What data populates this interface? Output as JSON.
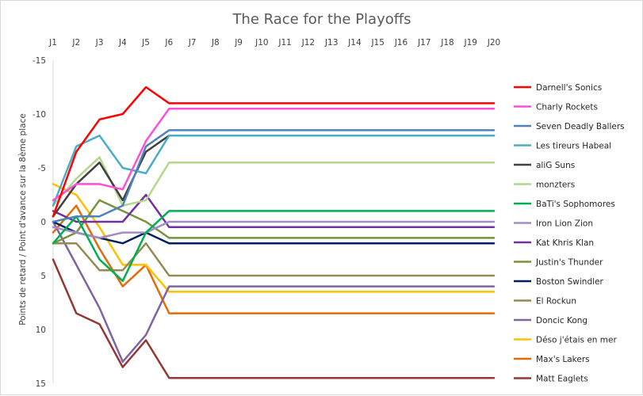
{
  "chart_data": {
    "type": "line",
    "title": "The Race for the Playoffs",
    "xlabel": "",
    "ylabel": "Points de retard / Point d'avance sur la 8ème place",
    "categories": [
      "J1",
      "J2",
      "J3",
      "J4",
      "J5",
      "J6",
      "J7",
      "J8",
      "J9",
      "J10",
      "J11",
      "J12",
      "J13",
      "J14",
      "J15",
      "J16",
      "J17",
      "J18",
      "J19",
      "J20"
    ],
    "y_ticks": [
      "-15",
      "-10",
      "-5",
      "0",
      "5",
      "10",
      "15"
    ],
    "ylim": [
      -15,
      15
    ],
    "y_inverted": true,
    "grid": false,
    "legend_position": "right",
    "series": [
      {
        "name": "Darnell's Sonics",
        "color": "#ff0000",
        "values": [
          -0.5,
          -6.5,
          -9.5,
          -10,
          -12.5,
          -11,
          -11,
          -11,
          -11,
          -11,
          -11,
          -11,
          -11,
          -11,
          -11,
          -11,
          -11,
          -11,
          -11,
          -11
        ]
      },
      {
        "name": "Charly Rockets",
        "color": "#ff4fd8",
        "values": [
          -2,
          -3.5,
          -3.5,
          -3,
          -7.5,
          -10.5,
          -10.5,
          -10.5,
          -10.5,
          -10.5,
          -10.5,
          -10.5,
          -10.5,
          -10.5,
          -10.5,
          -10.5,
          -10.5,
          -10.5,
          -10.5,
          -10.5
        ]
      },
      {
        "name": "Seven Deadly Ballers",
        "color": "#4f81bd",
        "values": [
          0,
          -0.5,
          -0.5,
          -1.5,
          -7,
          -8.5,
          -8.5,
          -8.5,
          -8.5,
          -8.5,
          -8.5,
          -8.5,
          -8.5,
          -8.5,
          -8.5,
          -8.5,
          -8.5,
          -8.5,
          -8.5,
          -8.5
        ]
      },
      {
        "name": "Les tireurs Habeal",
        "color": "#4bacc6",
        "values": [
          -1.5,
          -7,
          -8,
          -5,
          -4.5,
          -8,
          -8,
          -8,
          -8,
          -8,
          -8,
          -8,
          -8,
          -8,
          -8,
          -8,
          -8,
          -8,
          -8,
          -8
        ]
      },
      {
        "name": "aliG Suns",
        "color": "#404040",
        "values": [
          -0.5,
          -3.5,
          -5.5,
          -2,
          -6.5,
          -8,
          -8,
          -8,
          -8,
          -8,
          -8,
          -8,
          -8,
          -8,
          -8,
          -8,
          -8,
          -8,
          -8,
          -8
        ]
      },
      {
        "name": "monzters",
        "color": "#b4d88b",
        "values": [
          -1.5,
          -4,
          -6,
          -1.5,
          -2,
          -5.5,
          -5.5,
          -5.5,
          -5.5,
          -5.5,
          -5.5,
          -5.5,
          -5.5,
          -5.5,
          -5.5,
          -5.5,
          -5.5,
          -5.5,
          -5.5,
          -5.5
        ]
      },
      {
        "name": "BaTi's Sophomores",
        "color": "#00b050",
        "values": [
          2,
          -0.5,
          3.5,
          5.5,
          1,
          -1,
          -1,
          -1,
          -1,
          -1,
          -1,
          -1,
          -1,
          -1,
          -1,
          -1,
          -1,
          -1,
          -1,
          -1
        ]
      },
      {
        "name": "Iron Lion Zion",
        "color": "#a28cc8",
        "values": [
          0.5,
          1,
          1.5,
          1,
          1,
          0,
          0,
          0,
          0,
          0,
          0,
          0,
          0,
          0,
          0,
          0,
          0,
          0,
          0,
          0
        ]
      },
      {
        "name": "Kat Khris Klan",
        "color": "#7030a0",
        "values": [
          -1,
          0,
          0,
          0,
          -2.5,
          0.5,
          0.5,
          0.5,
          0.5,
          0.5,
          0.5,
          0.5,
          0.5,
          0.5,
          0.5,
          0.5,
          0.5,
          0.5,
          0.5,
          0.5
        ]
      },
      {
        "name": "Justin's Thunder",
        "color": "#77933c",
        "values": [
          2,
          1,
          -2,
          -1,
          0,
          1.5,
          1.5,
          1.5,
          1.5,
          1.5,
          1.5,
          1.5,
          1.5,
          1.5,
          1.5,
          1.5,
          1.5,
          1.5,
          1.5,
          1.5
        ]
      },
      {
        "name": "Boston Swindler",
        "color": "#002060",
        "values": [
          0,
          1,
          1.5,
          2,
          1,
          2,
          2,
          2,
          2,
          2,
          2,
          2,
          2,
          2,
          2,
          2,
          2,
          2,
          2,
          2
        ]
      },
      {
        "name": "El Rockun",
        "color": "#948a54",
        "values": [
          2,
          2,
          4.5,
          4.5,
          2,
          5,
          5,
          5,
          5,
          5,
          5,
          5,
          5,
          5,
          5,
          5,
          5,
          5,
          5,
          5
        ]
      },
      {
        "name": "Doncic Kong",
        "color": "#8064a2",
        "values": [
          0,
          4,
          8,
          13,
          10.5,
          6,
          6,
          6,
          6,
          6,
          6,
          6,
          6,
          6,
          6,
          6,
          6,
          6,
          6,
          6
        ]
      },
      {
        "name": "Déso j'étais en mer",
        "color": "#ffc000",
        "values": [
          -3.5,
          -2.5,
          0.5,
          4,
          4,
          6.5,
          6.5,
          6.5,
          6.5,
          6.5,
          6.5,
          6.5,
          6.5,
          6.5,
          6.5,
          6.5,
          6.5,
          6.5,
          6.5,
          6.5
        ]
      },
      {
        "name": "Max's Lakers",
        "color": "#e36c09",
        "values": [
          1,
          -1.5,
          2.5,
          6,
          4,
          8.5,
          8.5,
          8.5,
          8.5,
          8.5,
          8.5,
          8.5,
          8.5,
          8.5,
          8.5,
          8.5,
          8.5,
          8.5,
          8.5,
          8.5
        ]
      },
      {
        "name": "Matt Eaglets",
        "color": "#953735",
        "values": [
          3.5,
          8.5,
          9.5,
          13.5,
          11,
          14.5,
          14.5,
          14.5,
          14.5,
          14.5,
          14.5,
          14.5,
          14.5,
          14.5,
          14.5,
          14.5,
          14.5,
          14.5,
          14.5,
          14.5
        ]
      }
    ]
  }
}
